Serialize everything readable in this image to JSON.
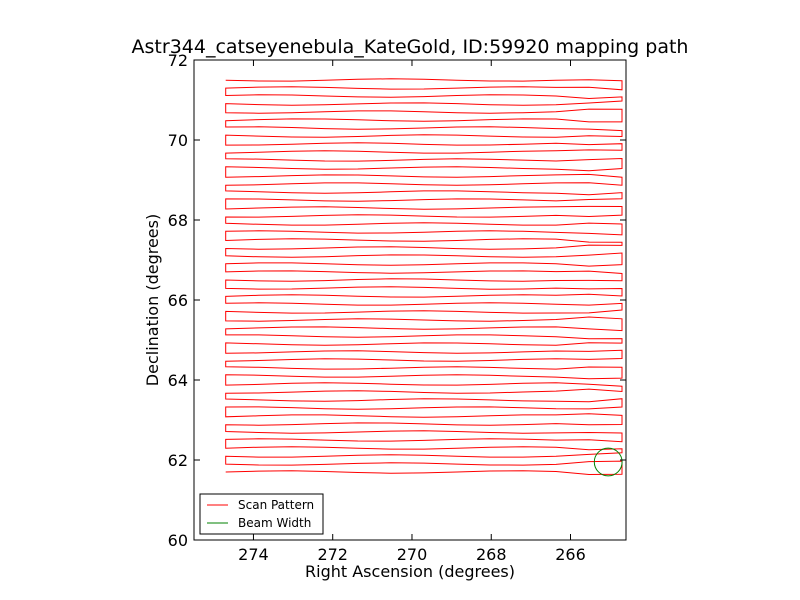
{
  "chart_data": {
    "type": "line",
    "title": "Astr344_catseyenebula_KateGold, ID:59920 mapping path",
    "xlabel": "Right Ascension (degrees)",
    "ylabel": "Declination (degrees)",
    "xlim": [
      275.5,
      264.6
    ],
    "ylim": [
      60,
      72
    ],
    "x_inverted": true,
    "xticks": [
      "274",
      "272",
      "270",
      "268",
      "266"
    ],
    "yticks": [
      "60",
      "62",
      "64",
      "66",
      "68",
      "70",
      "72"
    ],
    "grid": false,
    "legend_position": "lower-left",
    "colors": {
      "scan": "#ff0000",
      "beam": "#008000"
    },
    "scan_pattern": {
      "name": "Scan Pattern",
      "ra_range": [
        274.7,
        264.7
      ],
      "dec_start": 61.7,
      "dec_end": 71.6,
      "num_scan_lines": 50,
      "dec_step": 0.2
    },
    "beam_width": {
      "name": "Beam Width",
      "center_ra": 265.05,
      "center_dec": 61.95,
      "radius_deg": 0.35
    }
  }
}
